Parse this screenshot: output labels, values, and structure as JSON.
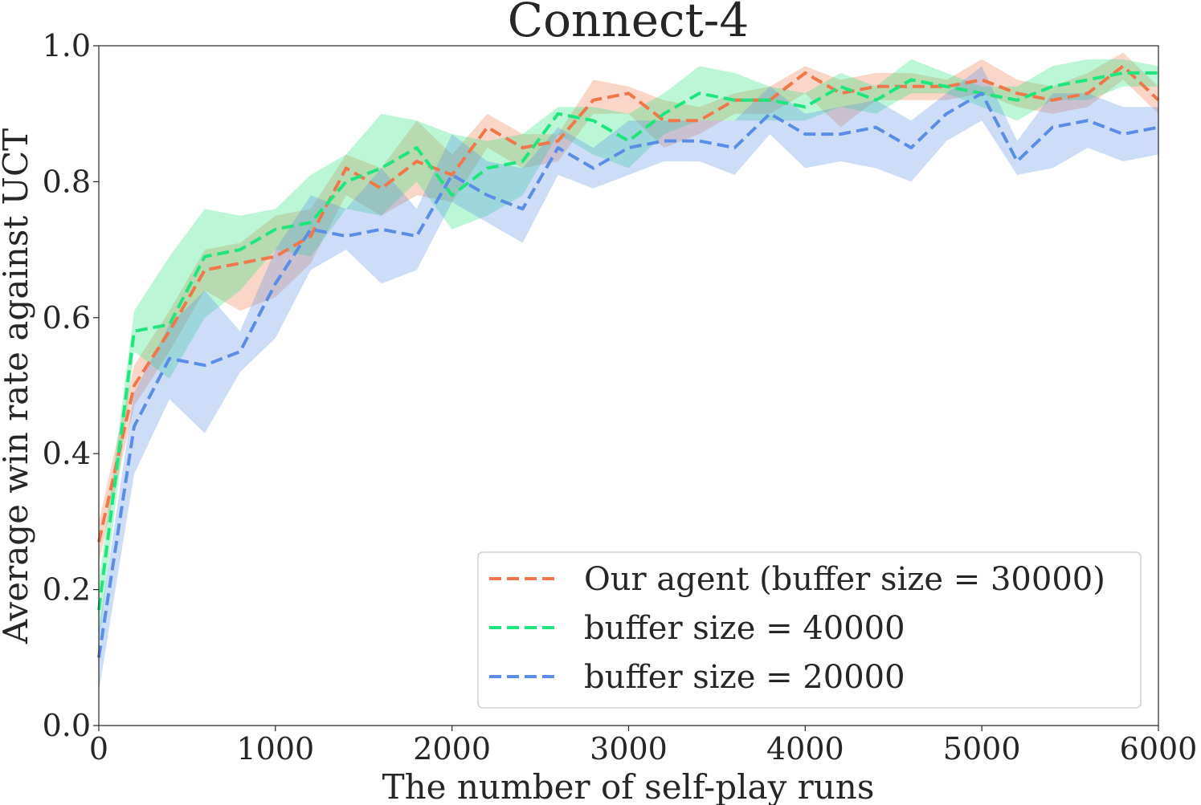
{
  "chart_data": {
    "type": "line",
    "title": "Connect-4",
    "xlabel": "The number of self-play runs",
    "ylabel": "Average win rate against UCT",
    "xlim": [
      0,
      6000
    ],
    "ylim": [
      0,
      1.0
    ],
    "x_ticks": [
      0,
      1000,
      2000,
      3000,
      4000,
      5000,
      6000
    ],
    "y_ticks": [
      "0.0",
      "0.2",
      "0.4",
      "0.6",
      "0.8",
      "1.0"
    ],
    "grid": false,
    "legend_position": "bottom-right",
    "line_style": "dashed",
    "x": [
      0,
      200,
      400,
      600,
      800,
      1000,
      1200,
      1400,
      1600,
      1800,
      2000,
      2200,
      2400,
      2600,
      2800,
      3000,
      3200,
      3400,
      3600,
      3800,
      4000,
      4200,
      4400,
      4600,
      4800,
      5000,
      5200,
      5400,
      5600,
      5800,
      6000
    ],
    "series": [
      {
        "name": "Our agent (buffer size = 30000)",
        "color": "#f0774a",
        "values": [
          0.27,
          0.5,
          0.58,
          0.67,
          0.68,
          0.69,
          0.72,
          0.82,
          0.79,
          0.83,
          0.81,
          0.88,
          0.85,
          0.86,
          0.92,
          0.93,
          0.89,
          0.89,
          0.92,
          0.92,
          0.96,
          0.93,
          0.94,
          0.94,
          0.94,
          0.95,
          0.93,
          0.92,
          0.93,
          0.97,
          0.92
        ],
        "lower": [
          0.24,
          0.47,
          0.55,
          0.64,
          0.61,
          0.63,
          0.68,
          0.78,
          0.75,
          0.78,
          0.77,
          0.85,
          0.82,
          0.83,
          0.9,
          0.9,
          0.85,
          0.87,
          0.9,
          0.9,
          0.93,
          0.88,
          0.92,
          0.92,
          0.92,
          0.93,
          0.91,
          0.9,
          0.91,
          0.95,
          0.9
        ],
        "upper": [
          0.3,
          0.53,
          0.61,
          0.7,
          0.71,
          0.75,
          0.76,
          0.84,
          0.82,
          0.89,
          0.84,
          0.9,
          0.87,
          0.87,
          0.95,
          0.94,
          0.92,
          0.91,
          0.93,
          0.94,
          0.97,
          0.95,
          0.96,
          0.96,
          0.95,
          0.98,
          0.95,
          0.94,
          0.96,
          0.99,
          0.94
        ]
      },
      {
        "name": "buffer size = 40000",
        "color": "#1ee67c",
        "values": [
          0.17,
          0.58,
          0.59,
          0.69,
          0.7,
          0.73,
          0.74,
          0.8,
          0.82,
          0.85,
          0.78,
          0.82,
          0.83,
          0.9,
          0.89,
          0.86,
          0.9,
          0.93,
          0.92,
          0.92,
          0.91,
          0.94,
          0.92,
          0.95,
          0.94,
          0.93,
          0.92,
          0.94,
          0.95,
          0.96,
          0.96
        ],
        "lower": [
          0.12,
          0.55,
          0.51,
          0.6,
          0.64,
          0.7,
          0.69,
          0.76,
          0.75,
          0.8,
          0.73,
          0.75,
          0.78,
          0.87,
          0.84,
          0.82,
          0.87,
          0.89,
          0.89,
          0.89,
          0.89,
          0.91,
          0.9,
          0.93,
          0.93,
          0.91,
          0.89,
          0.92,
          0.92,
          0.94,
          0.94
        ],
        "upper": [
          0.21,
          0.61,
          0.69,
          0.76,
          0.75,
          0.76,
          0.81,
          0.84,
          0.9,
          0.89,
          0.87,
          0.86,
          0.87,
          0.91,
          0.91,
          0.9,
          0.93,
          0.97,
          0.96,
          0.94,
          0.93,
          0.96,
          0.94,
          0.98,
          0.96,
          0.94,
          0.94,
          0.97,
          0.98,
          0.98,
          0.97
        ]
      },
      {
        "name": "buffer size = 20000",
        "color": "#5a8ee6",
        "values": [
          0.1,
          0.44,
          0.54,
          0.53,
          0.55,
          0.65,
          0.73,
          0.72,
          0.73,
          0.72,
          0.81,
          0.78,
          0.76,
          0.85,
          0.82,
          0.85,
          0.86,
          0.86,
          0.85,
          0.9,
          0.87,
          0.87,
          0.88,
          0.85,
          0.9,
          0.93,
          0.83,
          0.88,
          0.89,
          0.87,
          0.88
        ],
        "lower": [
          0.05,
          0.37,
          0.48,
          0.43,
          0.52,
          0.57,
          0.67,
          0.7,
          0.65,
          0.67,
          0.77,
          0.74,
          0.71,
          0.81,
          0.79,
          0.81,
          0.83,
          0.83,
          0.81,
          0.87,
          0.82,
          0.83,
          0.82,
          0.8,
          0.86,
          0.89,
          0.81,
          0.82,
          0.85,
          0.83,
          0.84
        ],
        "upper": [
          0.14,
          0.49,
          0.59,
          0.64,
          0.58,
          0.7,
          0.78,
          0.76,
          0.82,
          0.76,
          0.87,
          0.83,
          0.82,
          0.88,
          0.85,
          0.89,
          0.89,
          0.89,
          0.89,
          0.94,
          0.9,
          0.91,
          0.92,
          0.89,
          0.93,
          0.97,
          0.86,
          0.93,
          0.93,
          0.91,
          0.91
        ]
      }
    ]
  }
}
